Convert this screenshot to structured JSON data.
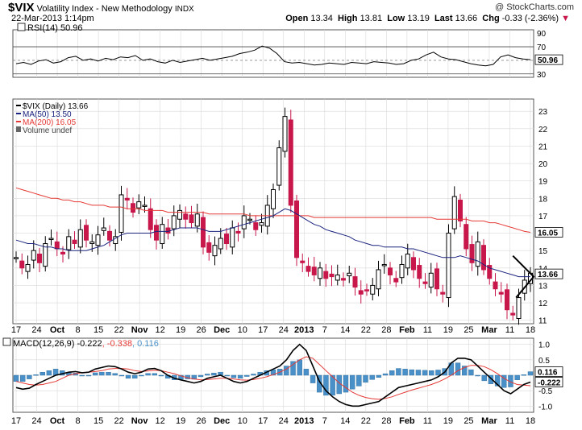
{
  "header": {
    "symbol": "$VIX",
    "name": "Volatility Index - New Methodology",
    "exchange": "INDX",
    "date": "22-Mar-2013 1:14pm",
    "watermark": "@ StockCharts.com",
    "quote": {
      "open_label": "Open",
      "open": "13.34",
      "high_label": "High",
      "high": "13.81",
      "low_label": "Low",
      "low": "13.19",
      "last_label": "Last",
      "last": "13.66",
      "chg_label": "Chg",
      "chg": "-0.33 (-2.36%)"
    }
  },
  "colors": {
    "up_candle": "#000000",
    "down_candle": "#c8174a",
    "ma50": "#1a237e",
    "ma200": "#e53935",
    "rsi": "#000000",
    "macd": "#000000",
    "signal": "#e53935",
    "histogram": "#4a90c8",
    "grid": "#d9d9d9"
  },
  "chart_data": [
    {
      "type": "line",
      "panel": "rsi",
      "title": "RSI(14) 50.96",
      "y_ticks": [
        90,
        70,
        50,
        30
      ],
      "ylim": [
        25,
        95
      ],
      "reference_lines": [
        70,
        30
      ],
      "last_label": "50.96",
      "values": [
        45,
        47,
        44,
        49,
        51,
        46,
        48,
        54,
        56,
        50,
        52,
        49,
        53,
        51,
        55,
        54,
        57,
        50,
        52,
        48,
        46,
        50,
        47,
        49,
        51,
        53,
        50,
        52,
        54,
        56,
        60,
        62,
        65,
        71,
        68,
        60,
        48,
        46,
        47,
        45,
        43,
        44,
        46,
        45,
        44,
        47,
        46,
        45,
        48,
        47,
        46,
        44,
        45,
        50,
        52,
        58,
        62,
        55,
        52,
        51,
        48,
        45,
        43,
        42,
        44,
        55,
        58,
        54,
        52,
        51
      ]
    },
    {
      "type": "candlestick",
      "panel": "price",
      "title": "$VIX (Daily) 13.66",
      "y_ticks": [
        23,
        22,
        21,
        20,
        19,
        18,
        17,
        16,
        15,
        14,
        13,
        12,
        11
      ],
      "ylim": [
        10.8,
        23.7
      ],
      "legend": [
        "$VIX (Daily) 13.66",
        "MA(50) 13.50",
        "MA(200) 16.05",
        "Volume undef"
      ],
      "price_tags": [
        "16.05",
        "13.66"
      ],
      "x_tick_labels": [
        "17",
        "24",
        "Oct",
        "8",
        "15",
        "22",
        "Nov",
        "12",
        "19",
        "26",
        "Dec",
        "10",
        "17",
        "24",
        "2013",
        "7",
        "14",
        "22",
        "28",
        "Feb",
        "11",
        "19",
        "25",
        "Mar",
        "11",
        "18"
      ],
      "close": [
        14.6,
        14.0,
        14.2,
        15.0,
        14.3,
        15.4,
        15.7,
        15.1,
        14.8,
        15.8,
        15.4,
        16.2,
        15.6,
        15.5,
        15.9,
        16.3,
        15.6,
        15.8,
        18.2,
        17.9,
        17.2,
        17.8,
        17.6,
        16.2,
        15.6,
        16.5,
        16.0,
        17.0,
        17.3,
        16.8,
        16.6,
        17.1,
        15.2,
        14.9,
        15.3,
        15.7,
        15.4,
        16.3,
        16.0,
        17.0,
        16.8,
        16.2,
        16.6,
        17.6,
        18.5,
        20.9,
        22.7,
        17.6,
        14.6,
        14.3,
        13.8,
        13.6,
        14.0,
        13.4,
        13.5,
        13.6,
        13.3,
        13.7,
        12.9,
        12.5,
        12.7,
        13.0,
        13.9,
        14.2,
        13.6,
        13.2,
        14.2,
        14.8,
        13.9,
        13.4,
        13.1,
        13.7,
        12.8,
        12.5,
        16.0,
        18.1,
        16.7,
        15.1,
        14.3,
        15.5,
        13.9,
        13.4,
        12.8,
        12.5,
        11.6,
        11.3,
        12.3,
        13.3,
        13.7
      ],
      "ma50": [
        15.6,
        15.5,
        15.4,
        15.4,
        15.3,
        15.2,
        15.2,
        15.1,
        15.1,
        15.0,
        15.0,
        15.0,
        15.0,
        15.1,
        15.2,
        15.3,
        15.5,
        15.7,
        15.9,
        16.0,
        16.0,
        16.0,
        16.0,
        16.0,
        16.1,
        16.1,
        16.1,
        16.2,
        16.3,
        16.3,
        16.3,
        16.3,
        16.2,
        16.1,
        16.1,
        16.1,
        16.2,
        16.3,
        16.4,
        16.5,
        16.6,
        16.7,
        16.8,
        16.9,
        17.0,
        17.2,
        17.4,
        17.3,
        17.1,
        16.9,
        16.7,
        16.5,
        16.4,
        16.2,
        16.1,
        16.0,
        15.9,
        15.8,
        15.6,
        15.5,
        15.4,
        15.3,
        15.3,
        15.2,
        15.2,
        15.2,
        15.2,
        15.1,
        15.1,
        15.0,
        14.9,
        14.8,
        14.7,
        14.6,
        14.6,
        14.6,
        14.7,
        14.6,
        14.5,
        14.4,
        14.2,
        14.0,
        13.9,
        13.8,
        13.7,
        13.6,
        13.5,
        13.5,
        13.5
      ],
      "ma200": [
        18.6,
        18.5,
        18.4,
        18.3,
        18.2,
        18.1,
        18.0,
        18.0,
        17.9,
        17.9,
        17.8,
        17.8,
        17.7,
        17.6,
        17.6,
        17.6,
        17.5,
        17.5,
        17.5,
        17.4,
        17.4,
        17.4,
        17.3,
        17.3,
        17.3,
        17.3,
        17.2,
        17.2,
        17.2,
        17.2,
        17.2,
        17.2,
        17.2,
        17.1,
        17.1,
        17.1,
        17.1,
        17.1,
        17.1,
        17.1,
        17.0,
        17.0,
        17.0,
        17.0,
        17.0,
        17.0,
        17.0,
        17.0,
        17.0,
        17.0,
        17.0,
        16.9,
        16.9,
        16.9,
        16.9,
        16.9,
        16.9,
        16.9,
        16.9,
        16.9,
        16.9,
        16.9,
        16.9,
        16.9,
        16.9,
        16.9,
        16.9,
        16.9,
        16.9,
        16.9,
        16.9,
        16.9,
        16.8,
        16.8,
        16.8,
        16.8,
        16.8,
        16.8,
        16.7,
        16.7,
        16.7,
        16.6,
        16.6,
        16.5,
        16.4,
        16.3,
        16.2,
        16.1,
        16.05
      ]
    },
    {
      "type": "line",
      "panel": "macd",
      "title": "MACD(12,26,9) -0.222, -0.338, 0.116",
      "title_parts": [
        "MACD(12,26,9) -0.222",
        ", -0.338",
        ", 0.116"
      ],
      "y_ticks": [
        "1.0",
        "0.5",
        "0.0",
        "-0.5",
        "-1.0"
      ],
      "ylim": [
        -1.2,
        1.2
      ],
      "price_tags": [
        "0.116",
        "-0.222"
      ],
      "series": [
        {
          "name": "MACD",
          "values": [
            -0.4,
            -0.45,
            -0.42,
            -0.3,
            -0.2,
            -0.1,
            0.0,
            0.05,
            0.1,
            0.12,
            0.08,
            0.1,
            0.2,
            0.25,
            0.3,
            0.28,
            0.2,
            0.1,
            0.05,
            0.1,
            0.2,
            0.22,
            0.15,
            0.0,
            -0.1,
            -0.15,
            -0.2,
            -0.25,
            -0.2,
            -0.1,
            -0.05,
            0.0,
            -0.1,
            -0.2,
            -0.25,
            -0.2,
            -0.1,
            0.0,
            0.1,
            0.2,
            0.3,
            0.5,
            0.8,
            1.0,
            0.8,
            0.3,
            -0.2,
            -0.5,
            -0.7,
            -0.85,
            -0.95,
            -1.0,
            -1.0,
            -0.95,
            -0.9,
            -0.85,
            -0.7,
            -0.55,
            -0.4,
            -0.35,
            -0.3,
            -0.25,
            -0.2,
            -0.15,
            -0.05,
            0.1,
            0.4,
            0.55,
            0.55,
            0.5,
            0.3,
            0.1,
            -0.1,
            -0.3,
            -0.5,
            -0.6,
            -0.45,
            -0.3,
            -0.222
          ]
        },
        {
          "name": "Signal",
          "values": [
            -0.2,
            -0.25,
            -0.3,
            -0.32,
            -0.3,
            -0.25,
            -0.2,
            -0.1,
            0.0,
            0.05,
            0.08,
            0.1,
            0.12,
            0.15,
            0.2,
            0.22,
            0.22,
            0.2,
            0.15,
            0.12,
            0.14,
            0.16,
            0.15,
            0.1,
            0.05,
            -0.02,
            -0.08,
            -0.12,
            -0.15,
            -0.14,
            -0.12,
            -0.1,
            -0.1,
            -0.12,
            -0.15,
            -0.16,
            -0.14,
            -0.1,
            -0.05,
            0.02,
            0.1,
            0.2,
            0.35,
            0.5,
            0.6,
            0.55,
            0.35,
            0.15,
            -0.05,
            -0.25,
            -0.4,
            -0.55,
            -0.65,
            -0.72,
            -0.76,
            -0.78,
            -0.75,
            -0.7,
            -0.62,
            -0.55,
            -0.48,
            -0.42,
            -0.36,
            -0.3,
            -0.22,
            -0.12,
            0.0,
            0.15,
            0.25,
            0.32,
            0.32,
            0.28,
            0.18,
            0.05,
            -0.1,
            -0.22,
            -0.3,
            -0.32,
            -0.338
          ]
        },
        {
          "name": "Histogram",
          "values": [
            -0.2,
            -0.2,
            -0.12,
            0.02,
            0.1,
            0.15,
            0.2,
            0.15,
            0.1,
            0.07,
            0.0,
            0.0,
            0.08,
            0.1,
            0.1,
            0.06,
            -0.02,
            -0.1,
            -0.1,
            -0.02,
            0.06,
            0.06,
            0.0,
            -0.1,
            -0.15,
            -0.13,
            -0.12,
            -0.13,
            -0.05,
            0.04,
            0.07,
            0.1,
            0.0,
            -0.08,
            -0.1,
            -0.04,
            0.04,
            0.1,
            0.15,
            0.18,
            0.2,
            0.3,
            0.45,
            0.5,
            0.2,
            -0.25,
            -0.55,
            -0.65,
            -0.65,
            -0.6,
            -0.55,
            -0.45,
            -0.35,
            -0.23,
            -0.14,
            -0.07,
            0.05,
            0.15,
            0.22,
            0.2,
            0.18,
            0.17,
            0.16,
            0.15,
            0.17,
            0.22,
            0.4,
            0.4,
            0.3,
            0.18,
            -0.02,
            -0.18,
            -0.28,
            -0.35,
            -0.4,
            -0.38,
            -0.15,
            0.02,
            0.116
          ]
        }
      ]
    }
  ]
}
